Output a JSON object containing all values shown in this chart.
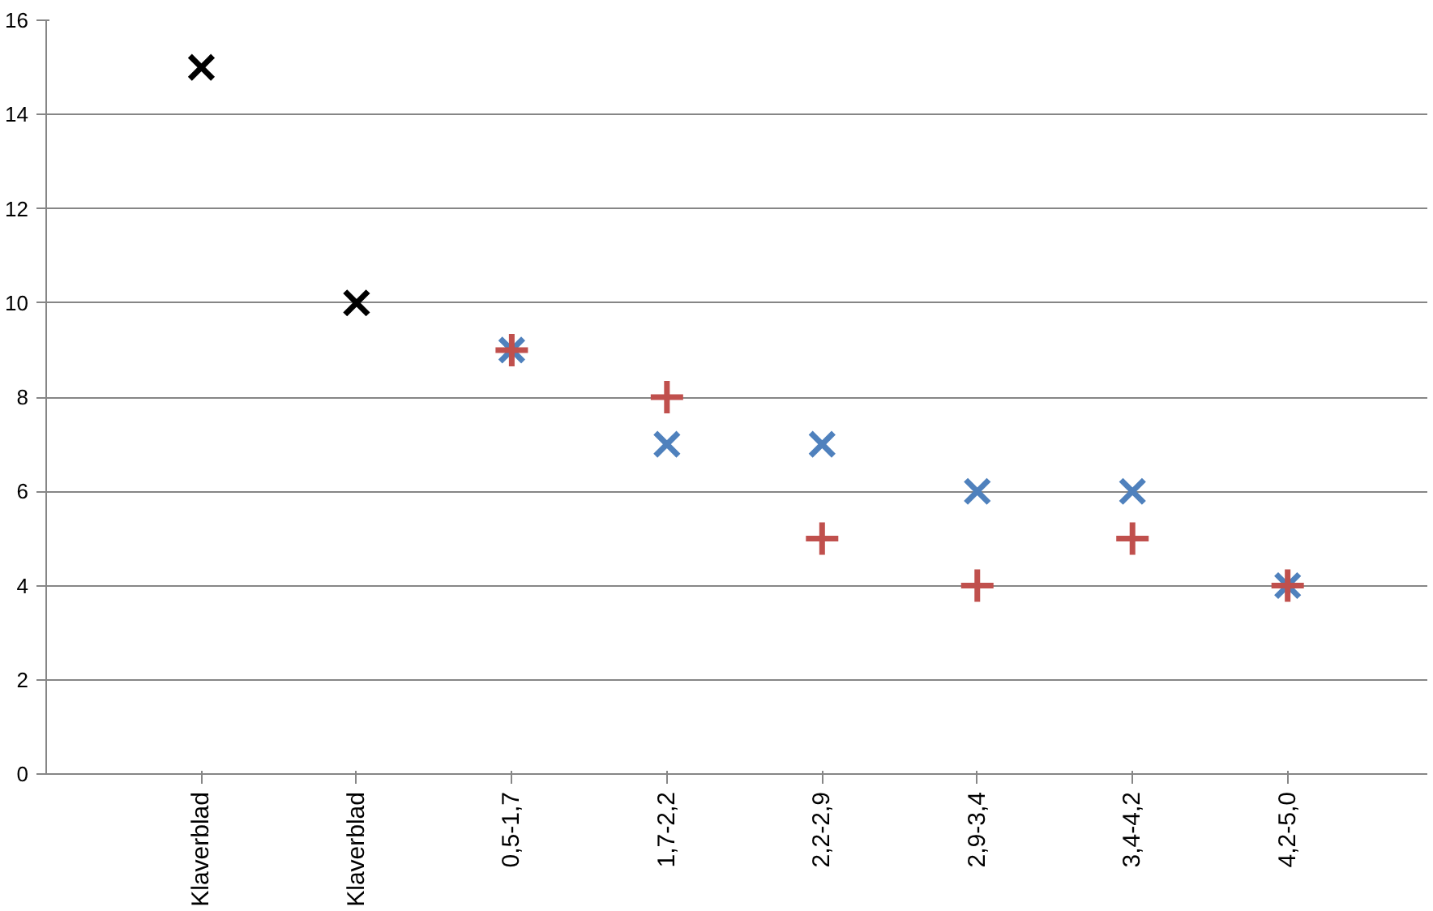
{
  "chart_data": {
    "type": "scatter",
    "categories": [
      "Klaverblad",
      "Klaverblad",
      "0,5-1,7",
      "1,7-2,2",
      "2,2-2,9",
      "2,9-3,4",
      "3,4-4,2",
      "4,2-5,0"
    ],
    "series": [
      {
        "color": "#000000",
        "marker": "x",
        "values": [
          15,
          10,
          null,
          null,
          null,
          null,
          null,
          null
        ]
      },
      {
        "color": "#4f81bd",
        "marker": "x",
        "values": [
          null,
          null,
          9,
          7,
          7,
          6,
          6,
          4
        ]
      },
      {
        "color": "#c0504d",
        "marker": "cross",
        "values": [
          null,
          null,
          9,
          8,
          5,
          4,
          5,
          4
        ]
      }
    ],
    "ylim": [
      0,
      16
    ],
    "yticks": [
      0,
      2,
      4,
      6,
      8,
      10,
      12,
      14,
      16
    ],
    "grid": "y"
  }
}
